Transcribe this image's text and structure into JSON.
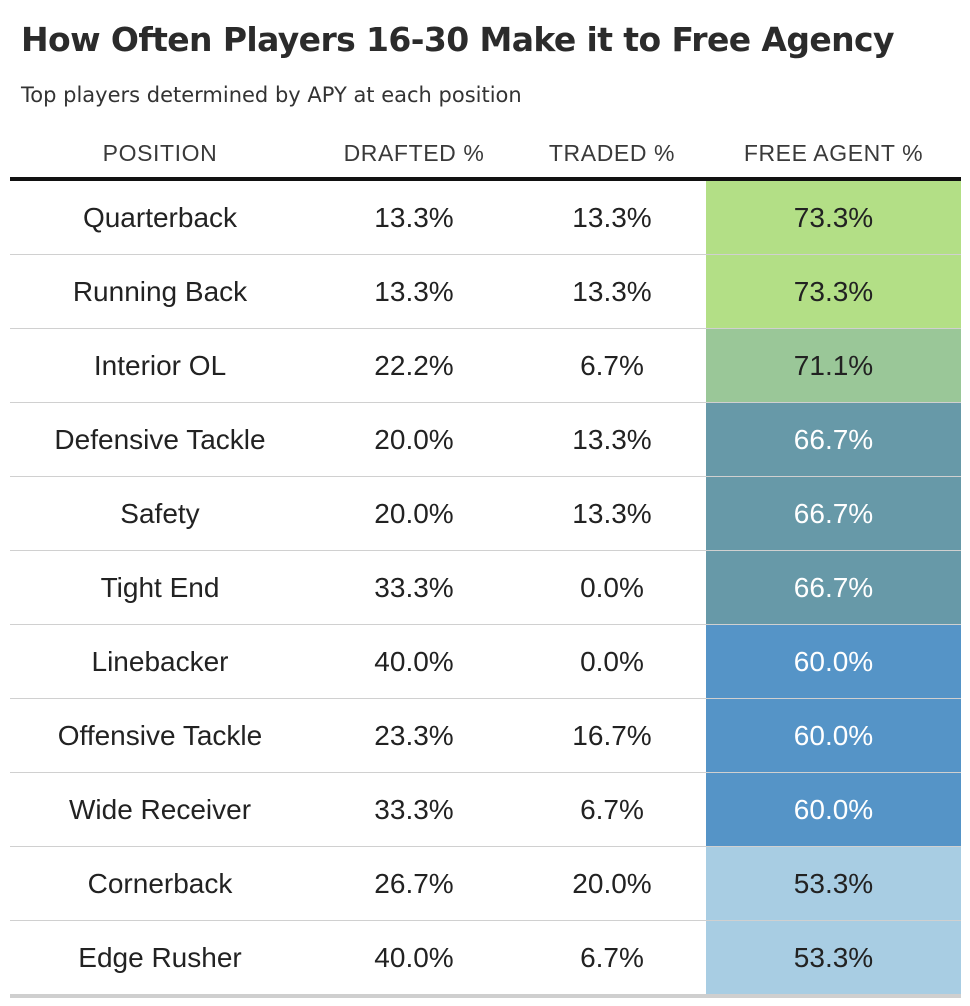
{
  "title": "How Often Players 16-30 Make it to Free Agency",
  "subtitle": "Top players determined by APY at each position",
  "chart_data": {
    "type": "table",
    "columns": [
      "POSITION",
      "DRAFTED %",
      "TRADED %",
      "FREE AGENT %"
    ],
    "rows": [
      {
        "position": "Quarterback",
        "drafted": "13.3%",
        "traded": "13.3%",
        "free_agent": "73.3%",
        "fill": "#b3df86",
        "text_color": "#222222"
      },
      {
        "position": "Running Back",
        "drafted": "13.3%",
        "traded": "13.3%",
        "free_agent": "73.3%",
        "fill": "#b3df86",
        "text_color": "#222222"
      },
      {
        "position": "Interior OL",
        "drafted": "22.2%",
        "traded": "6.7%",
        "free_agent": "71.1%",
        "fill": "#9ac798",
        "text_color": "#222222"
      },
      {
        "position": "Defensive Tackle",
        "drafted": "20.0%",
        "traded": "13.3%",
        "free_agent": "66.7%",
        "fill": "#6799a8",
        "text_color": "#ffffff"
      },
      {
        "position": "Safety",
        "drafted": "20.0%",
        "traded": "13.3%",
        "free_agent": "66.7%",
        "fill": "#6799a8",
        "text_color": "#ffffff"
      },
      {
        "position": "Tight End",
        "drafted": "33.3%",
        "traded": "0.0%",
        "free_agent": "66.7%",
        "fill": "#6799a8",
        "text_color": "#ffffff"
      },
      {
        "position": "Linebacker",
        "drafted": "40.0%",
        "traded": "0.0%",
        "free_agent": "60.0%",
        "fill": "#5594c7",
        "text_color": "#ffffff"
      },
      {
        "position": "Offensive Tackle",
        "drafted": "23.3%",
        "traded": "16.7%",
        "free_agent": "60.0%",
        "fill": "#5594c7",
        "text_color": "#ffffff"
      },
      {
        "position": "Wide Receiver",
        "drafted": "33.3%",
        "traded": "6.7%",
        "free_agent": "60.0%",
        "fill": "#5594c7",
        "text_color": "#ffffff"
      },
      {
        "position": "Cornerback",
        "drafted": "26.7%",
        "traded": "20.0%",
        "free_agent": "53.3%",
        "fill": "#a8cde3",
        "text_color": "#222222"
      },
      {
        "position": "Edge Rusher",
        "drafted": "40.0%",
        "traded": "6.7%",
        "free_agent": "53.3%",
        "fill": "#a8cde3",
        "text_color": "#222222"
      }
    ]
  }
}
